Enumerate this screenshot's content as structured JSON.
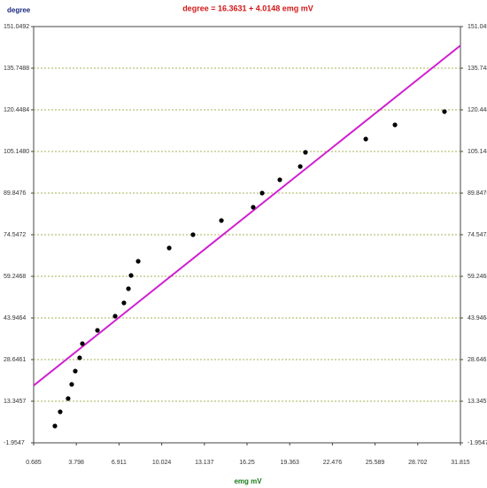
{
  "chart_data": {
    "type": "scatter",
    "title": "degree = 16.3631 + 4.0148 emg mV",
    "y_label": "degree",
    "x_label": "emg mV",
    "x": [
      2.235,
      2.62,
      3.2,
      3.46,
      3.72,
      4.04,
      4.24,
      5.34,
      6.63,
      7.27,
      7.6,
      7.79,
      8.31,
      10.57,
      12.31,
      14.38,
      16.7,
      17.35,
      18.64,
      20.13,
      20.51,
      24.91,
      27.04,
      30.65
    ],
    "values": [
      4.23,
      9.44,
      14.32,
      19.53,
      24.41,
      29.3,
      34.51,
      39.39,
      44.6,
      49.48,
      54.69,
      59.57,
      64.78,
      69.66,
      74.55,
      79.76,
      84.64,
      89.85,
      94.73,
      99.61,
      104.82,
      109.71,
      114.91,
      119.8
    ],
    "color": "#000000",
    "fit_line": {
      "intercept": 16.3631,
      "slope": 4.0148,
      "color": "#d020d0"
    },
    "xlim": [
      0.685,
      31.815
    ],
    "xticks": [
      0.685,
      3.798,
      6.911,
      10.024,
      13.137,
      16.25,
      19.363,
      22.476,
      25.589,
      28.702,
      31.815
    ],
    "ylim": [
      -1.9547,
      151.0492
    ],
    "yticks": [
      -1.9547,
      13.3457,
      28.6461,
      43.9464,
      59.2468,
      74.5472,
      89.8476,
      {
        "value": 105.148,
        "label": "105.1480"
      },
      120.4484,
      135.7488,
      151.0492
    ],
    "grid": true,
    "grid_color": "#8a9a20"
  }
}
